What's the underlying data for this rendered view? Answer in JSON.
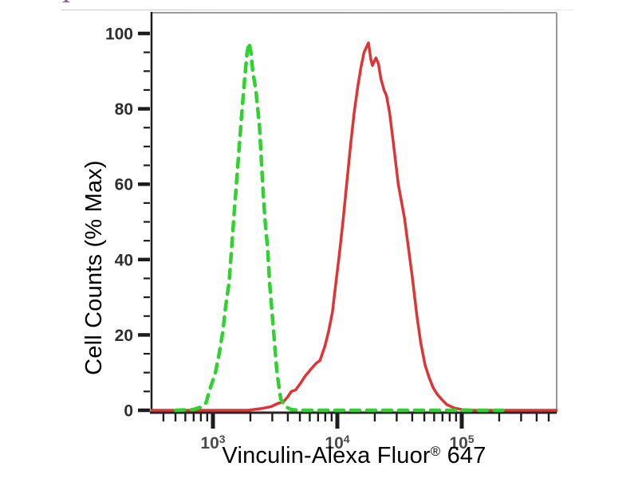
{
  "figure": {
    "background": "#ffffff",
    "frame_color": "#9a9a9a",
    "axis_color": "#1c1c1c",
    "tick_color": "#1c1c1c",
    "y_tick_label_color": "#2e2e2e",
    "x_tick_label_color": "#4a4a4a"
  },
  "decorations": {
    "fragment_text": "1",
    "fragment_color": "#7b5fa5"
  },
  "chart_data": {
    "type": "line",
    "subtype": "flow-cytometry-histogram-overlay",
    "title": "",
    "xlabel": "Vinculin-Alexa Fluor® 647",
    "xlabel_main": "Vinculin-Alexa Fluor",
    "xlabel_sup": "®",
    "xlabel_tail": " 647",
    "ylabel": "Cell Counts (% Max)",
    "x_scale": "log10",
    "xlim_log10": [
      2.506,
      5.763
    ],
    "ylim": [
      0,
      100
    ],
    "x_major_ticks": [
      1000,
      10000,
      100000
    ],
    "x_major_tick_exponents": [
      3,
      4,
      5
    ],
    "y_major_ticks": [
      0,
      20,
      40,
      60,
      80,
      100
    ],
    "y_minor_tick_step": 5,
    "grid": false,
    "legend": "none",
    "series": [
      {
        "name": "red-solid-curve",
        "description": "Vinculin-Alexa Fluor 647 stained population, solid red, peak ~1.8e4 at ~97% with double-peak notch",
        "color": "#e03434",
        "style": "solid",
        "stroke_width": 3.5,
        "points_log10x_pct": [
          [
            2.51,
            0
          ],
          [
            3.28,
            0
          ],
          [
            3.4,
            0.5
          ],
          [
            3.47,
            1
          ],
          [
            3.52,
            1.8
          ],
          [
            3.565,
            2.2
          ],
          [
            3.6,
            3.5
          ],
          [
            3.63,
            5
          ],
          [
            3.665,
            5.4
          ],
          [
            3.7,
            7
          ],
          [
            3.74,
            9
          ],
          [
            3.79,
            11
          ],
          [
            3.83,
            12.5
          ],
          [
            3.86,
            13.2
          ],
          [
            3.9,
            17
          ],
          [
            3.93,
            21
          ],
          [
            3.96,
            26
          ],
          [
            3.985,
            33
          ],
          [
            4.015,
            41
          ],
          [
            4.045,
            50
          ],
          [
            4.075,
            60
          ],
          [
            4.105,
            70
          ],
          [
            4.135,
            79
          ],
          [
            4.165,
            86
          ],
          [
            4.19,
            91
          ],
          [
            4.215,
            95
          ],
          [
            4.25,
            97.5
          ],
          [
            4.27,
            93
          ],
          [
            4.282,
            91.5
          ],
          [
            4.31,
            93.5
          ],
          [
            4.33,
            92
          ],
          [
            4.35,
            88
          ],
          [
            4.375,
            85
          ],
          [
            4.395,
            83.5
          ],
          [
            4.42,
            79
          ],
          [
            4.45,
            71
          ],
          [
            4.49,
            60
          ],
          [
            4.54,
            51
          ],
          [
            4.6,
            36
          ],
          [
            4.64,
            25
          ],
          [
            4.67,
            18
          ],
          [
            4.705,
            12
          ],
          [
            4.74,
            8.5
          ],
          [
            4.77,
            6
          ],
          [
            4.8,
            4.4
          ],
          [
            4.835,
            3
          ],
          [
            4.88,
            1.5
          ],
          [
            4.94,
            0.6
          ],
          [
            5.01,
            0.15
          ],
          [
            5.1,
            0
          ],
          [
            5.76,
            0
          ]
        ]
      },
      {
        "name": "green-dashed-curve",
        "description": "Negative control population, dashed green, peak ~1.9e3 at ~97%",
        "color": "#2fd32f",
        "style": "dashed",
        "stroke_width": 4.5,
        "dash_pattern": [
          11,
          9
        ],
        "points_log10x_pct": [
          [
            2.7,
            0
          ],
          [
            2.84,
            0.2
          ],
          [
            2.9,
            0.8
          ],
          [
            2.945,
            2
          ],
          [
            2.97,
            5
          ],
          [
            3.0,
            8
          ],
          [
            3.02,
            10
          ],
          [
            3.05,
            15
          ],
          [
            3.08,
            21
          ],
          [
            3.1,
            27
          ],
          [
            3.13,
            34
          ],
          [
            3.15,
            43
          ],
          [
            3.17,
            52
          ],
          [
            3.2,
            65
          ],
          [
            3.23,
            78
          ],
          [
            3.255,
            88
          ],
          [
            3.275,
            95
          ],
          [
            3.29,
            97.5
          ],
          [
            3.305,
            95
          ],
          [
            3.32,
            90
          ],
          [
            3.345,
            85
          ],
          [
            3.36,
            80
          ],
          [
            3.375,
            75
          ],
          [
            3.39,
            66
          ],
          [
            3.405,
            57
          ],
          [
            3.42,
            50
          ],
          [
            3.44,
            43
          ],
          [
            3.455,
            34
          ],
          [
            3.475,
            26
          ],
          [
            3.495,
            18
          ],
          [
            3.515,
            10
          ],
          [
            3.545,
            3
          ],
          [
            3.58,
            1
          ],
          [
            3.63,
            0.2
          ],
          [
            3.7,
            0
          ],
          [
            5.33,
            0
          ]
        ]
      }
    ]
  }
}
